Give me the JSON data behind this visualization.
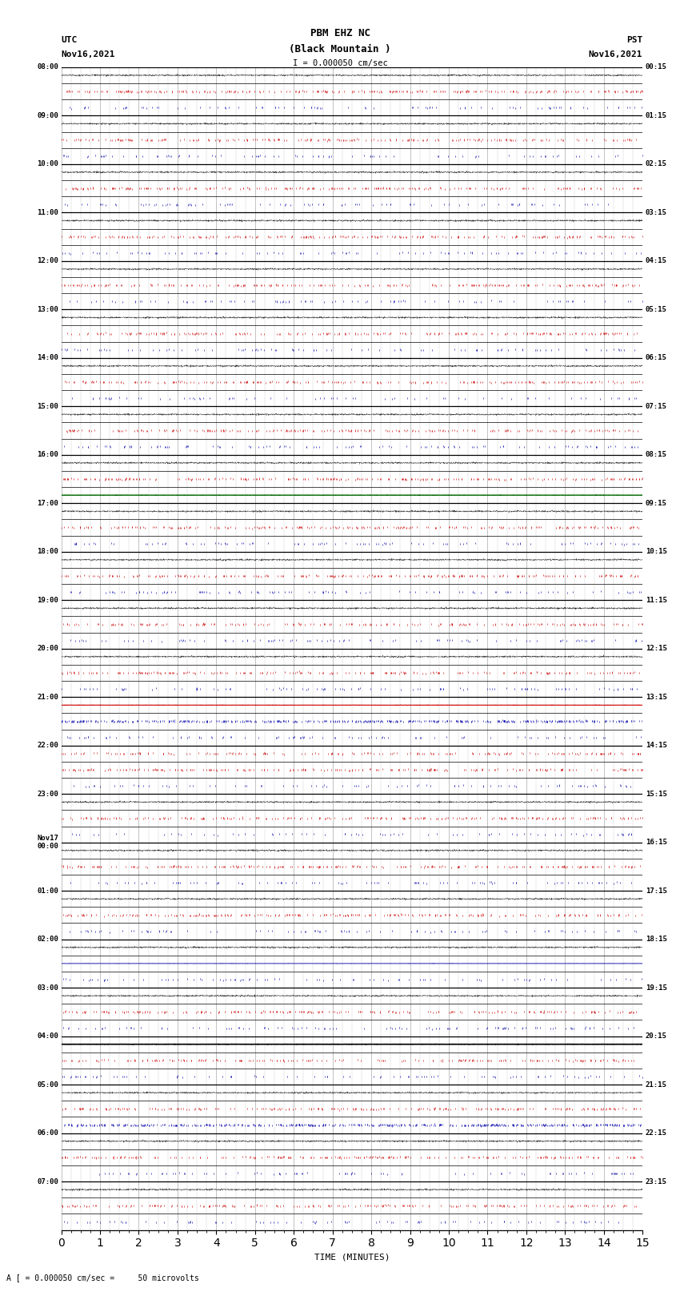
{
  "title_line1": "PBM EHZ NC",
  "title_line2": "(Black Mountain )",
  "scale_label": "I = 0.000050 cm/sec",
  "left_label_top": "UTC",
  "left_label_date": "Nov16,2021",
  "right_label_top": "PST",
  "right_label_date": "Nov16,2021",
  "bottom_note": "A [ = 0.000050 cm/sec =     50 microvolts",
  "xlabel": "TIME (MINUTES)",
  "bg_color": "#ffffff",
  "grid_color": "#aaaaaa",
  "trace_color_black": "#000000",
  "trace_color_blue": "#0000aa",
  "trace_color_red": "#cc0000",
  "trace_color_green": "#006600",
  "num_hours": 24,
  "sub_rows": 3,
  "xmin": 0,
  "xmax": 15,
  "xtick_major": [
    0,
    1,
    2,
    3,
    4,
    5,
    6,
    7,
    8,
    9,
    10,
    11,
    12,
    13,
    14,
    15
  ],
  "utc_labels": [
    "08:00",
    "09:00",
    "10:00",
    "11:00",
    "12:00",
    "13:00",
    "14:00",
    "15:00",
    "16:00",
    "17:00",
    "18:00",
    "19:00",
    "20:00",
    "21:00",
    "22:00",
    "23:00",
    "Nov17\n00:00",
    "01:00",
    "02:00",
    "03:00",
    "04:00",
    "05:00",
    "06:00",
    "07:00"
  ],
  "pst_labels": [
    "00:15",
    "01:15",
    "02:15",
    "03:15",
    "04:15",
    "05:15",
    "06:15",
    "07:15",
    "08:15",
    "09:15",
    "10:15",
    "11:15",
    "12:15",
    "13:15",
    "14:15",
    "15:15",
    "16:15",
    "17:15",
    "18:15",
    "19:15",
    "20:15",
    "21:15",
    "22:15",
    "23:15"
  ],
  "special_rows": {
    "comment": "hour_index: sub_row (0=top,1=mid,2=bot), color, style",
    "0_0": {
      "color": "#000000",
      "style": "dots_black"
    },
    "0_1": {
      "color": "#cc0000",
      "style": "dots_red"
    },
    "0_2": {
      "color": "#0000aa",
      "style": "dots_blue"
    },
    "8_2": {
      "color": "#006600",
      "style": "solid_green"
    },
    "13_0": {
      "color": "#cc0000",
      "style": "solid_red"
    },
    "13_1": {
      "color": "#0000aa",
      "style": "dots_blue_dense"
    },
    "14_0": {
      "color": "#cc0000",
      "style": "dots_red"
    },
    "18_1": {
      "color": "#0000aa",
      "style": "solid_blue"
    },
    "20_0": {
      "color": "#000000",
      "style": "solid_black_thick"
    },
    "21_2": {
      "color": "#0000aa",
      "style": "dots_blue"
    }
  }
}
